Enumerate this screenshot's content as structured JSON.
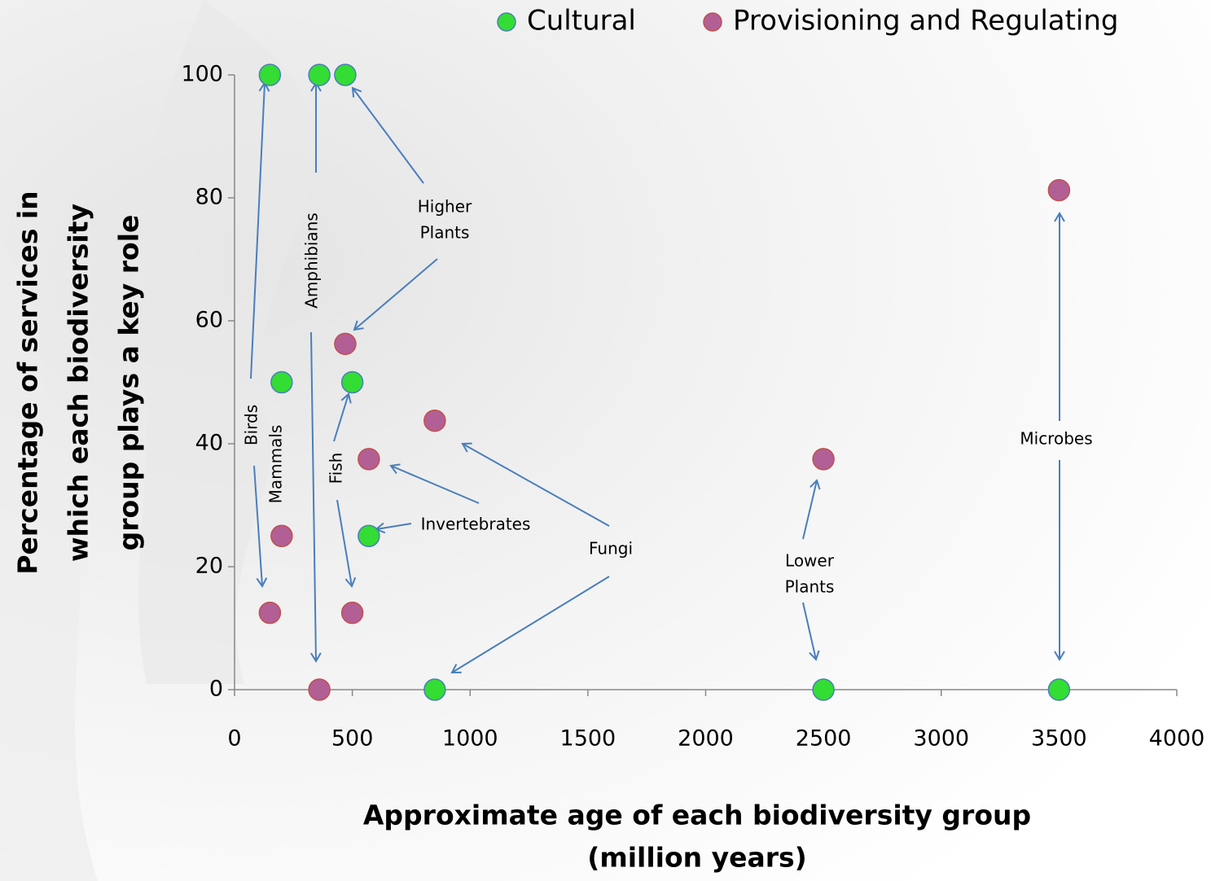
{
  "chart_data": {
    "type": "scatter",
    "xlabel": [
      "Approximate age of each biodiversity group",
      "(million years)"
    ],
    "ylabel": [
      "Percentage of services in",
      "which each biodiversity",
      "group plays a key role"
    ],
    "xlim": [
      0,
      4000
    ],
    "xticks": [
      0,
      500,
      1000,
      1500,
      2000,
      2500,
      3000,
      3500,
      4000
    ],
    "ylim": [
      0,
      100
    ],
    "yticks": [
      0,
      20,
      40,
      60,
      80,
      100
    ],
    "grid": false,
    "legend": "top",
    "series": [
      {
        "name": "Cultural",
        "color": "#33dd33",
        "x": [
          150,
          360,
          470,
          200,
          500,
          570,
          850,
          2500,
          3500
        ],
        "y": [
          100,
          100,
          100,
          50,
          50,
          25,
          0,
          0,
          0
        ]
      },
      {
        "name": "Provisioning and Regulating",
        "color": "#b25f95",
        "x": [
          150,
          200,
          360,
          470,
          500,
          570,
          850,
          2500,
          3500
        ],
        "y": [
          12.5,
          25,
          0,
          56.25,
          12.5,
          37.5,
          43.75,
          37.5,
          81.25
        ]
      }
    ],
    "annotations": [
      {
        "lines": [
          "Birds"
        ]
      },
      {
        "lines": [
          "Mammals"
        ]
      },
      {
        "lines": [
          "Amphibians"
        ]
      },
      {
        "lines": [
          "Higher",
          "Plants"
        ]
      },
      {
        "lines": [
          "Fish"
        ]
      },
      {
        "lines": [
          "Invertebrates"
        ]
      },
      {
        "lines": [
          "Fungi"
        ]
      },
      {
        "lines": [
          "Lower",
          "Plants"
        ]
      },
      {
        "lines": [
          "Microbes"
        ]
      }
    ]
  }
}
